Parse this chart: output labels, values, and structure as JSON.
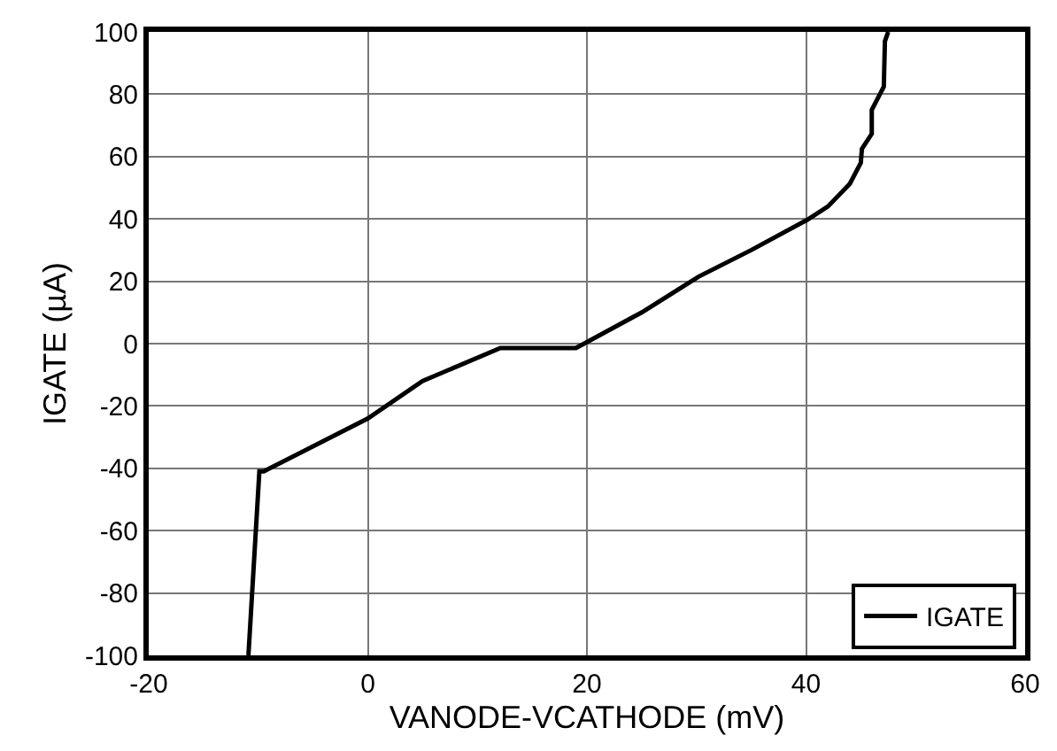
{
  "chart_data": {
    "type": "line",
    "xlabel": "VANODE-VCATHODE (mV)",
    "ylabel": "IGATE (µA)",
    "series": [
      {
        "name": "IGATE",
        "color": "#000000",
        "x": [
          -10.9,
          -9.9,
          -9.5,
          0,
          5,
          12.1,
          19,
          25,
          30.2,
          35,
          40.1,
          42,
          44,
          45,
          45.1,
          46,
          46,
          47.1,
          47.2,
          47.5
        ],
        "values": [
          -100,
          -41,
          -41,
          -24,
          -12,
          -1.4,
          -1.4,
          10,
          21.5,
          30,
          39.7,
          44,
          51.3,
          58,
          62.5,
          67.3,
          75,
          82.4,
          97,
          100
        ]
      }
    ],
    "xlim": [
      -20,
      60
    ],
    "xticks": [
      -20,
      0,
      20,
      40,
      60
    ],
    "ylim": [
      -100,
      100
    ],
    "yticks": [
      -100,
      -80,
      -60,
      -40,
      -20,
      0,
      20,
      40,
      60,
      80,
      100
    ],
    "grid": true,
    "legend": "bottom right",
    "marker": "none",
    "line_style": "solid"
  }
}
